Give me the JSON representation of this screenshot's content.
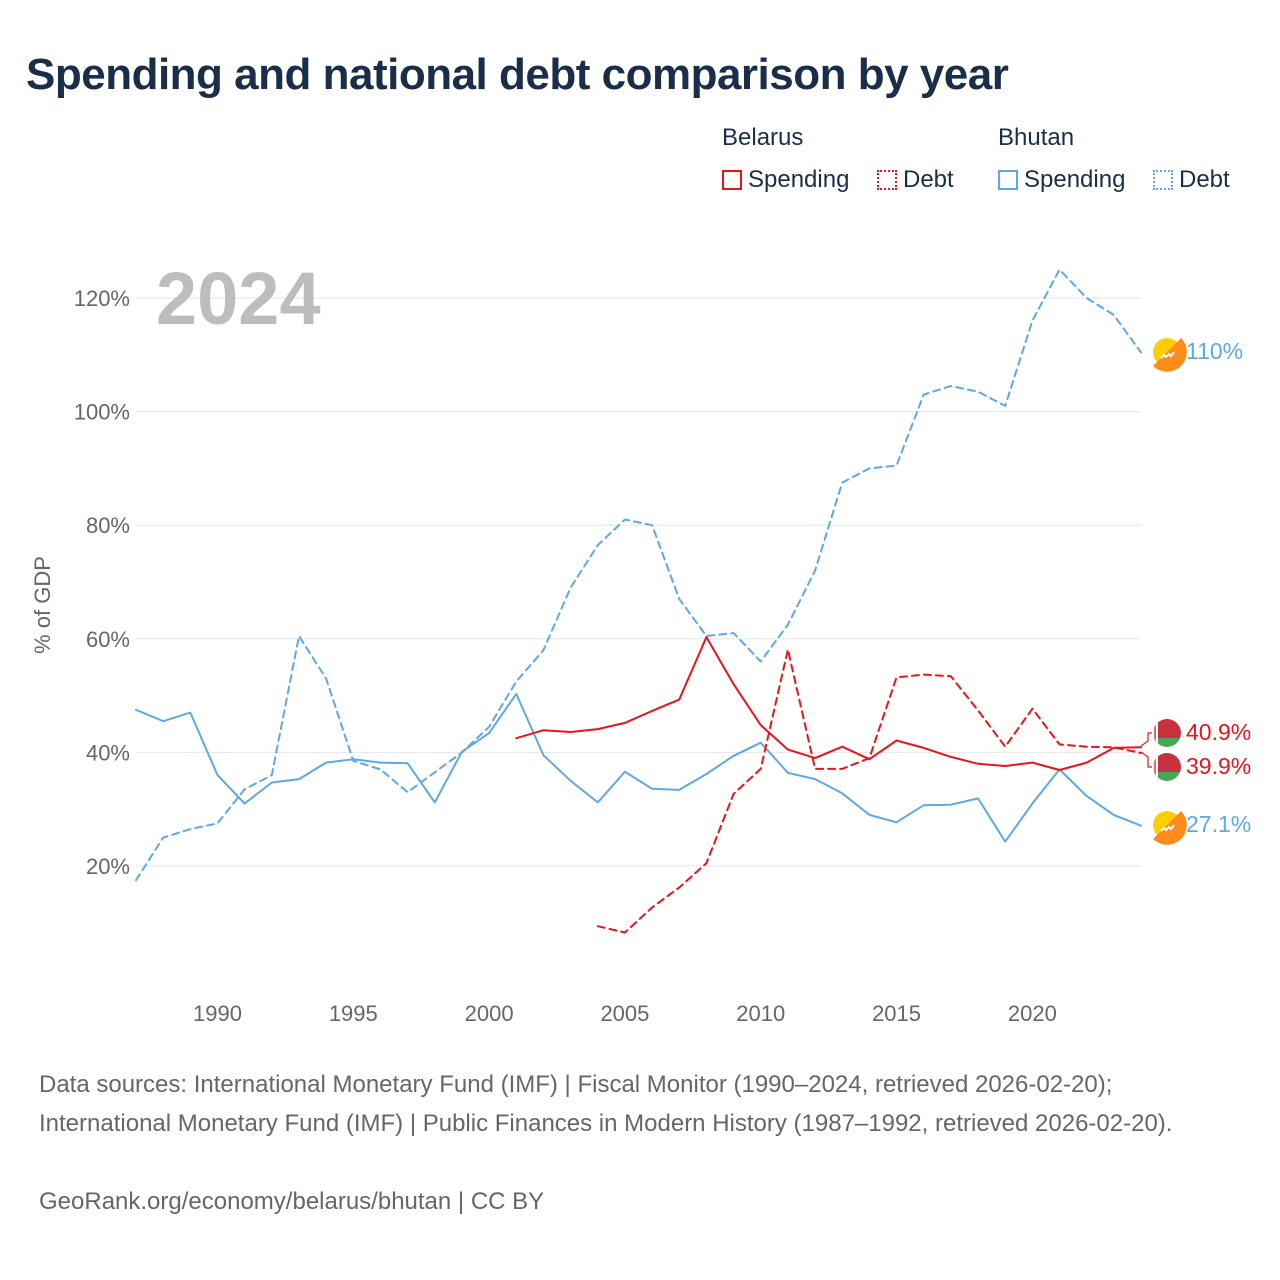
{
  "colors": {
    "belarus": "#e8141b",
    "bhutan": "#5fa8e3",
    "title": "#1a2e4a",
    "axis_text": "#666666",
    "year_watermark": "#bdbdbd",
    "grid": "#e6e6e6"
  },
  "title": "Spending and national debt comparison by year",
  "legend": {
    "groups": [
      {
        "country": "Belarus",
        "color": "#e8141b",
        "items": [
          {
            "label": "Spending",
            "style": "solid"
          },
          {
            "label": "Debt",
            "style": "dotted"
          }
        ]
      },
      {
        "country": "Bhutan",
        "color": "#5fa8e3",
        "items": [
          {
            "label": "Spending",
            "style": "solid"
          },
          {
            "label": "Debt",
            "style": "dotted"
          }
        ]
      }
    ]
  },
  "chart_data": {
    "type": "line",
    "year_watermark": "2024",
    "ylabel": "% of GDP",
    "xlim": [
      1987,
      2024
    ],
    "ylim": [
      0,
      130
    ],
    "yticks": [
      20,
      40,
      60,
      80,
      100,
      120
    ],
    "ytick_labels": [
      "20%",
      "40%",
      "60%",
      "80%",
      "100%",
      "120%"
    ],
    "xticks": [
      1990,
      1995,
      2000,
      2005,
      2010,
      2015,
      2020
    ],
    "xtick_labels": [
      "1990",
      "1995",
      "2000",
      "2005",
      "2010",
      "2015",
      "2020"
    ],
    "series": [
      {
        "name": "Bhutan Debt",
        "country": "Bhutan",
        "kind": "debt",
        "color": "#5fa8e3",
        "x": [
          1987,
          1988,
          1989,
          1990,
          1991,
          1992,
          1993,
          1994,
          1995,
          1996,
          1997,
          1998,
          1999,
          2000,
          2001,
          2002,
          2003,
          2004,
          2005,
          2006,
          2007,
          2008,
          2009,
          2010,
          2011,
          2012,
          2013,
          2014,
          2015,
          2016,
          2017,
          2018,
          2019,
          2020,
          2021,
          2022,
          2023,
          2024
        ],
        "values": [
          17.5,
          25,
          26.5,
          27.5,
          33.5,
          36,
          60.5,
          53,
          38.5,
          37,
          33,
          36.5,
          40,
          44.5,
          52.5,
          58,
          69,
          76.5,
          81,
          80,
          67,
          60.5,
          61,
          56,
          62.5,
          72,
          87.5,
          90,
          90.5,
          103,
          104.5,
          103.5,
          101,
          116,
          125,
          120,
          117,
          110.4
        ]
      },
      {
        "name": "Bhutan Spending",
        "country": "Bhutan",
        "kind": "spending",
        "color": "#5fa8e3",
        "x": [
          1987,
          1988,
          1989,
          1990,
          1991,
          1992,
          1993,
          1994,
          1995,
          1996,
          1997,
          1998,
          1999,
          2000,
          2001,
          2002,
          2003,
          2004,
          2005,
          2006,
          2007,
          2008,
          2009,
          2010,
          2011,
          2012,
          2013,
          2014,
          2015,
          2016,
          2017,
          2018,
          2019,
          2020,
          2021,
          2022,
          2023,
          2024
        ],
        "values": [
          47.5,
          45.5,
          47,
          36,
          31,
          34.7,
          35.3,
          38.2,
          38.8,
          38.2,
          38.1,
          31.2,
          40.1,
          43.4,
          50.3,
          39.5,
          35,
          31.2,
          36.6,
          33.6,
          33.4,
          36.2,
          39.4,
          41.7,
          36.4,
          35.3,
          32.8,
          29,
          27.7,
          30.7,
          30.8,
          31.9,
          24.3,
          31,
          37,
          32.3,
          29,
          27.1
        ]
      },
      {
        "name": "Belarus Debt",
        "country": "Belarus",
        "kind": "debt",
        "color": "#e8141b",
        "x": [
          2004,
          2005,
          2006,
          2007,
          2008,
          2009,
          2010,
          2011,
          2012,
          2013,
          2014,
          2015,
          2016,
          2017,
          2018,
          2019,
          2020,
          2021,
          2022,
          2023,
          2024
        ],
        "values": [
          9.4,
          8.3,
          12.7,
          16.2,
          20.5,
          32.7,
          37.1,
          58.1,
          37.1,
          37.1,
          39,
          53.2,
          53.7,
          53.4,
          47.4,
          41,
          47.7,
          41.4,
          41,
          40.9,
          39.9
        ]
      },
      {
        "name": "Belarus Spending",
        "country": "Belarus",
        "kind": "spending",
        "color": "#e8141b",
        "x": [
          2001,
          2002,
          2003,
          2004,
          2005,
          2006,
          2007,
          2008,
          2009,
          2010,
          2011,
          2012,
          2013,
          2014,
          2015,
          2016,
          2017,
          2018,
          2019,
          2020,
          2021,
          2022,
          2023,
          2024
        ],
        "values": [
          42.5,
          43.9,
          43.6,
          44.1,
          45.2,
          47.3,
          49.3,
          60.3,
          52,
          44.8,
          40.5,
          39,
          41,
          38.8,
          42.1,
          40.8,
          39.2,
          38,
          37.6,
          38.2,
          36.9,
          38.2,
          40.8,
          40.9
        ]
      }
    ],
    "end_labels": [
      {
        "series": "Bhutan Debt",
        "text": "110%"
      },
      {
        "series": "Belarus Spending",
        "text": "40.9%"
      },
      {
        "series": "Belarus Debt",
        "text": "39.9%"
      },
      {
        "series": "Bhutan Spending",
        "text": "27.1%"
      }
    ]
  },
  "footer": {
    "sources": "Data sources: International Monetary Fund (IMF) | Fiscal Monitor (1990–2024, retrieved 2026-02-20); International Monetary Fund (IMF) | Public Finances in Modern History (1987–1992, retrieved 2026-02-20).",
    "attribution": "GeoRank.org/economy/belarus/bhutan | CC BY"
  }
}
